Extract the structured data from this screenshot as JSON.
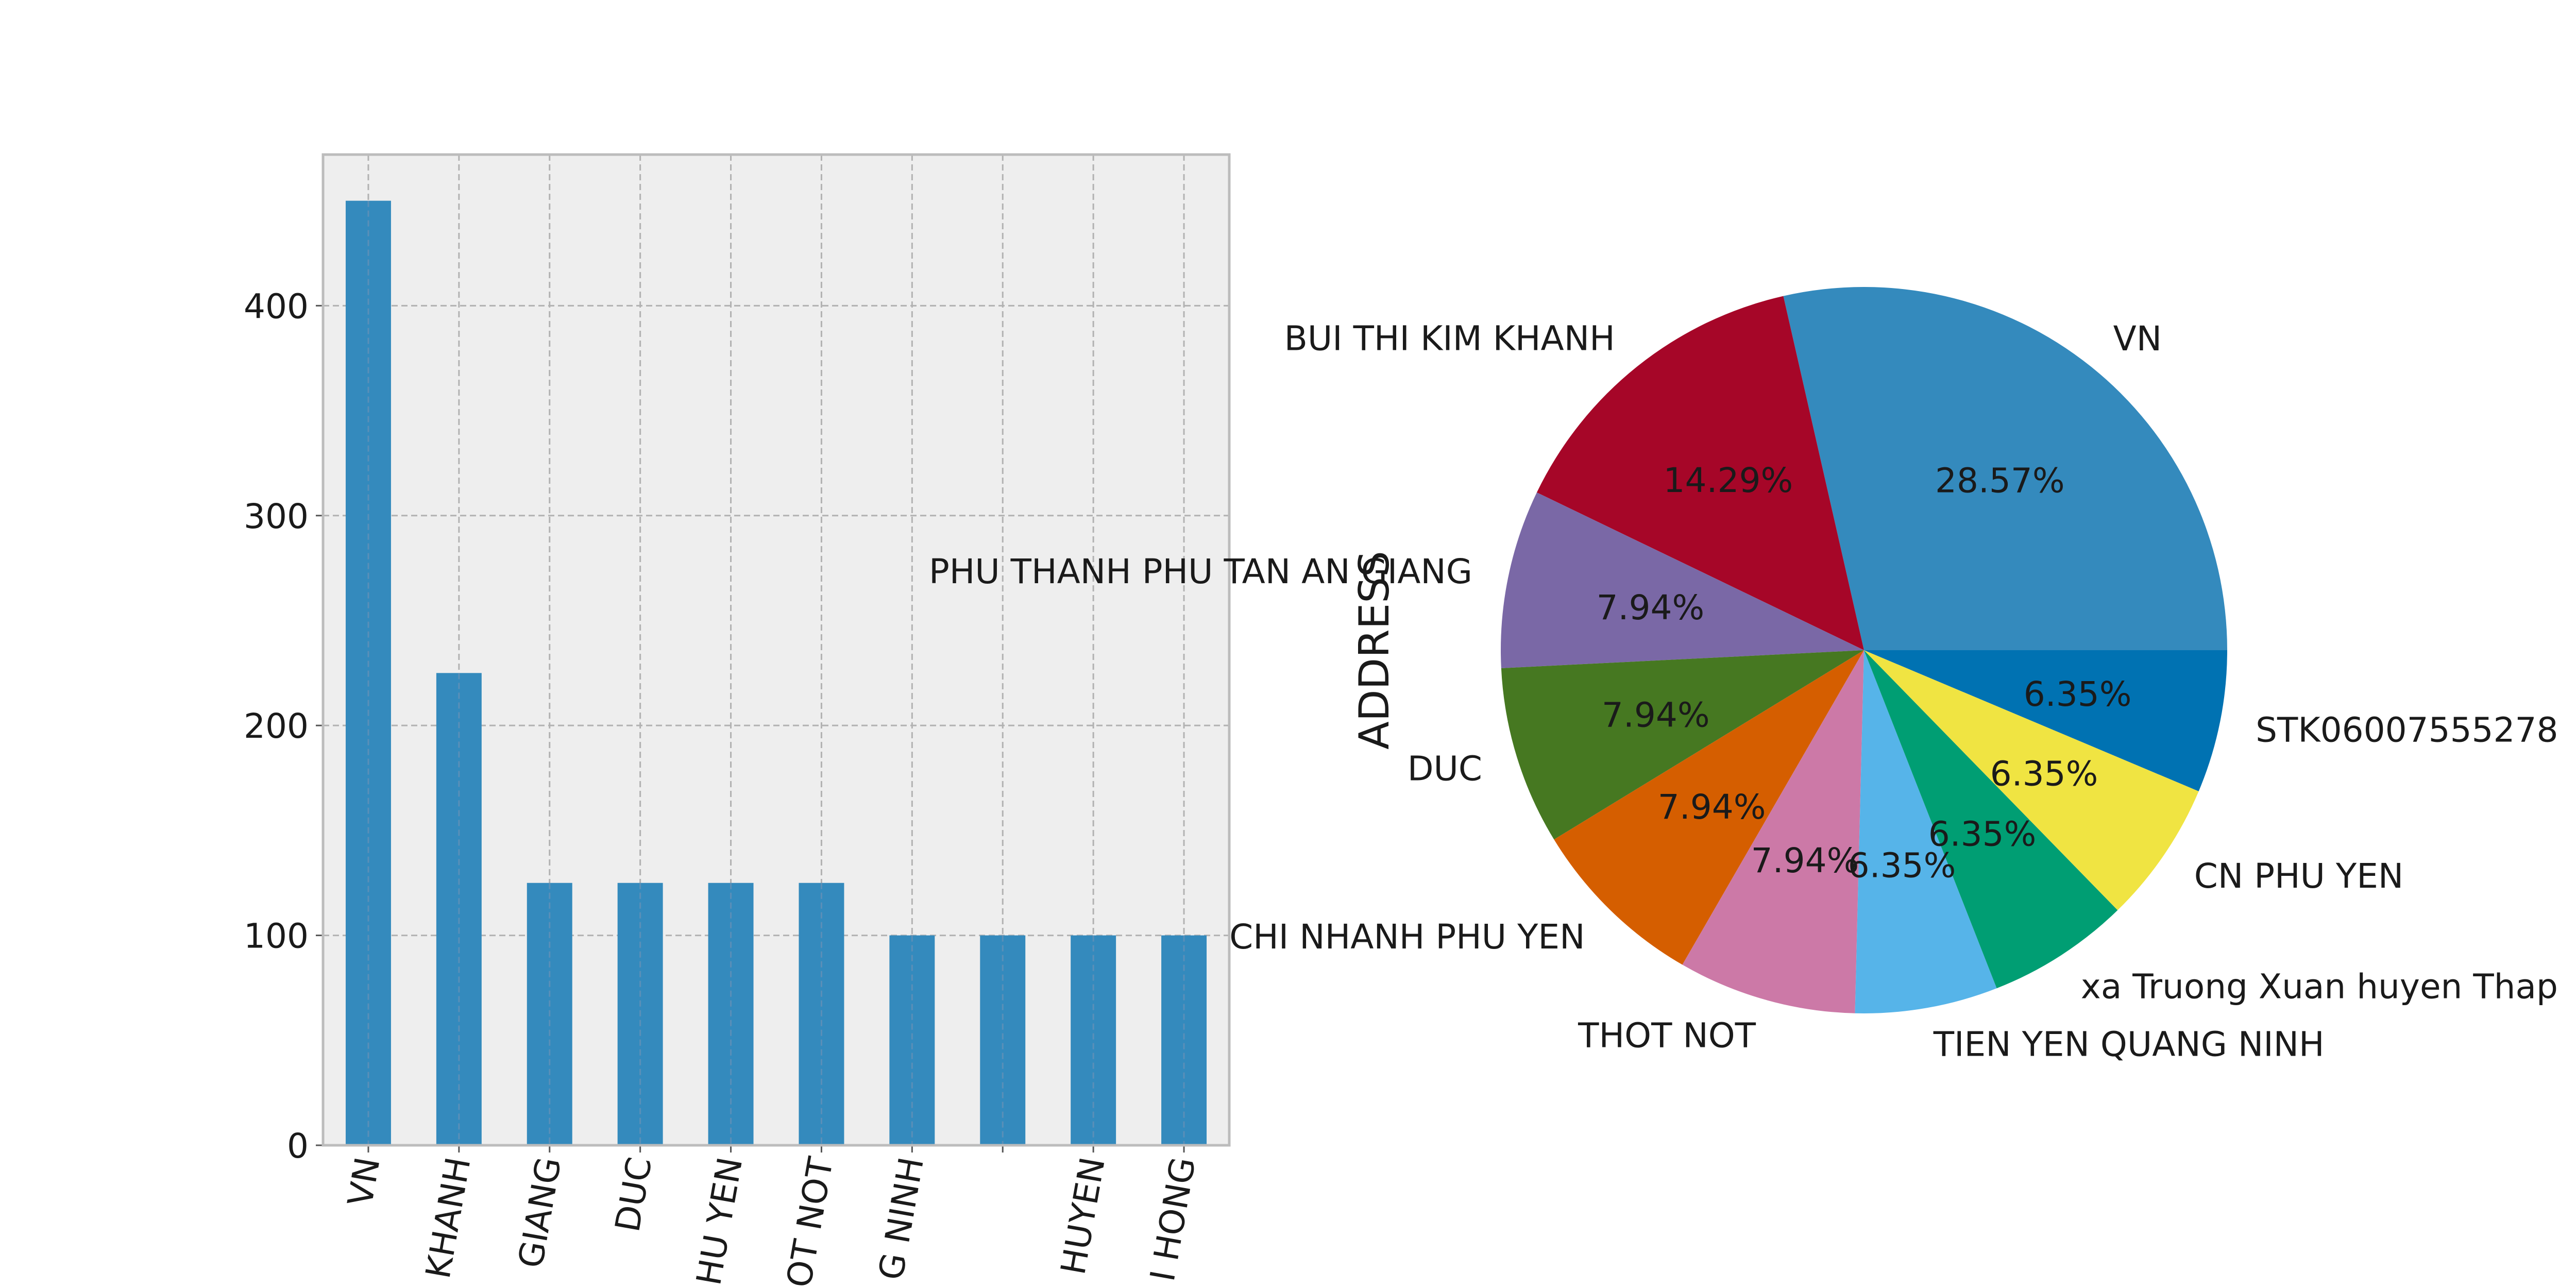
{
  "chart_data": [
    {
      "type": "bar",
      "categories": [
        "VN",
        "KHANH",
        "GIANG",
        "DUC",
        "HU YEN",
        "OT NOT",
        "G NINH",
        "",
        "HUYEN",
        "I HONG"
      ],
      "values": [
        450,
        225,
        125,
        125,
        125,
        125,
        100,
        100,
        100,
        100
      ],
      "ylim": [
        0,
        472
      ],
      "yticks": [
        0,
        100,
        200,
        300,
        400
      ],
      "grid": true,
      "colors": {
        "bar": "#348ABD",
        "axes_bg": "#EEEEEE",
        "grid": "#B2B2B2",
        "spine": "#BCBCBC"
      }
    },
    {
      "type": "pie",
      "ylabel": "ADDRESS",
      "slices": [
        {
          "label": "VN",
          "value": 28.57,
          "pct_label": "28.57%",
          "color": "#348ABD"
        },
        {
          "label": "BUI THI KIM KHANH",
          "value": 14.29,
          "pct_label": "14.29%",
          "color": "#A60628"
        },
        {
          "label": "PHU THANH PHU TAN AN GIANG",
          "value": 7.94,
          "pct_label": "7.94%",
          "color": "#7A68A6"
        },
        {
          "label": "DUC",
          "value": 7.94,
          "pct_label": "7.94%",
          "color": "#467821"
        },
        {
          "label": "CHI NHANH PHU YEN",
          "value": 7.94,
          "pct_label": "7.94%",
          "color": "#D55E00"
        },
        {
          "label": "THOT NOT",
          "value": 7.94,
          "pct_label": "7.94%",
          "color": "#CC79A7"
        },
        {
          "label": "TIEN YEN QUANG NINH",
          "value": 6.35,
          "pct_label": "6.35%",
          "color": "#56B4E9"
        },
        {
          "label": "xa Truong Xuan huyen Thap",
          "value": 6.35,
          "pct_label": "6.35%",
          "color": "#009E73"
        },
        {
          "label": "CN PHU YEN",
          "value": 6.35,
          "pct_label": "6.35%",
          "color": "#F0E442"
        },
        {
          "label": "STK06007555278",
          "value": 6.35,
          "pct_label": "6.35%",
          "color": "#0072B2"
        }
      ]
    }
  ]
}
